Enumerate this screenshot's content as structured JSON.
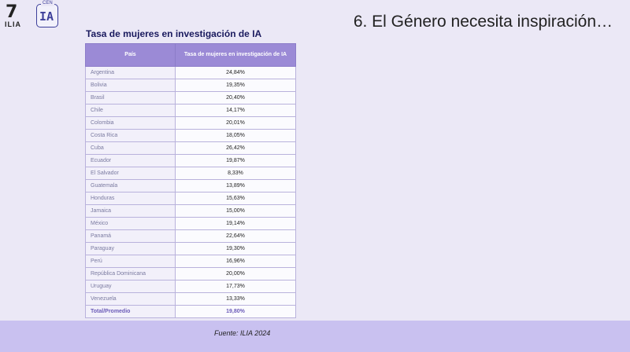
{
  "logos": {
    "ilia": "ILIA",
    "cenia_tag": "CEN",
    "cenia_mark": "IA"
  },
  "slide_title": "6. El Género necesita inspiración…",
  "table": {
    "title": "Tasa de mujeres en investigación de IA",
    "headers": [
      "País",
      "Tasa de mujeres en investigación de IA"
    ],
    "rows": [
      [
        "Argentina",
        "24,84%"
      ],
      [
        "Bolivia",
        "19,35%"
      ],
      [
        "Brasil",
        "20,40%"
      ],
      [
        "Chile",
        "14,17%"
      ],
      [
        "Colombia",
        "20,01%"
      ],
      [
        "Costa Rica",
        "18,05%"
      ],
      [
        "Cuba",
        "26,42%"
      ],
      [
        "Ecuador",
        "19,87%"
      ],
      [
        "El Salvador",
        "8,33%"
      ],
      [
        "Guatemala",
        "13,89%"
      ],
      [
        "Honduras",
        "15,63%"
      ],
      [
        "Jamaica",
        "15,00%"
      ],
      [
        "México",
        "19,14%"
      ],
      [
        "Panamá",
        "22,64%"
      ],
      [
        "Paraguay",
        "19,30%"
      ],
      [
        "Perú",
        "16,96%"
      ],
      [
        "República Dominicana",
        "20,00%"
      ],
      [
        "Uruguay",
        "17,73%"
      ],
      [
        "Venezuela",
        "13,33%"
      ]
    ],
    "total": [
      "Total/Promedio",
      "19,80%"
    ]
  },
  "footer": {
    "source": "Fuente: ILIA 2024"
  }
}
